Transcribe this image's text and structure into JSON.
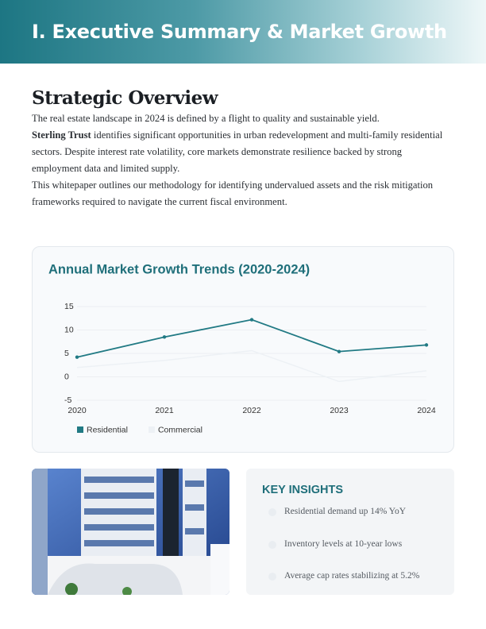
{
  "header": {
    "title": "I. Executive Summary & Market Growth"
  },
  "overview": {
    "heading": "Strategic Overview",
    "paragraphs": [
      {
        "text": "The real estate landscape in 2024 is defined by a flight to quality and sustainable yield."
      },
      {
        "lead": "Sterling Trust",
        "text": "identifies significant opportunities in urban redevelopment and multi-family residential sectors. Despite interest rate volatility, core markets demonstrate resilience backed by strong employment data and limited supply."
      },
      {
        "text": "This whitepaper outlines our methodology for identifying undervalued assets and the risk mitigation frameworks required to navigate the current fiscal environment."
      }
    ]
  },
  "chart_data": {
    "type": "line",
    "title": "Annual Market Growth Trends (2020-2024)",
    "categories": [
      "2020",
      "2021",
      "2022",
      "2023",
      "2024"
    ],
    "series": [
      {
        "name": "Residential",
        "color": "#217a84",
        "values": [
          4.2,
          8.5,
          12.2,
          5.4,
          6.8
        ]
      },
      {
        "name": "Commercial",
        "color": "#edf1f5",
        "values": [
          2,
          3.5,
          5.6,
          -1,
          1.3
        ]
      }
    ],
    "ylim": [
      -5,
      15
    ],
    "yticks": [
      -5,
      0,
      5,
      10,
      15
    ],
    "grid": true,
    "legend": "bottom"
  },
  "insights": {
    "title": "KEY INSIGHTS",
    "items": [
      "Residential demand up 14% YoY",
      "Inventory levels at 10-year lows",
      "Average cap rates stabilizing at 5.2%"
    ]
  }
}
